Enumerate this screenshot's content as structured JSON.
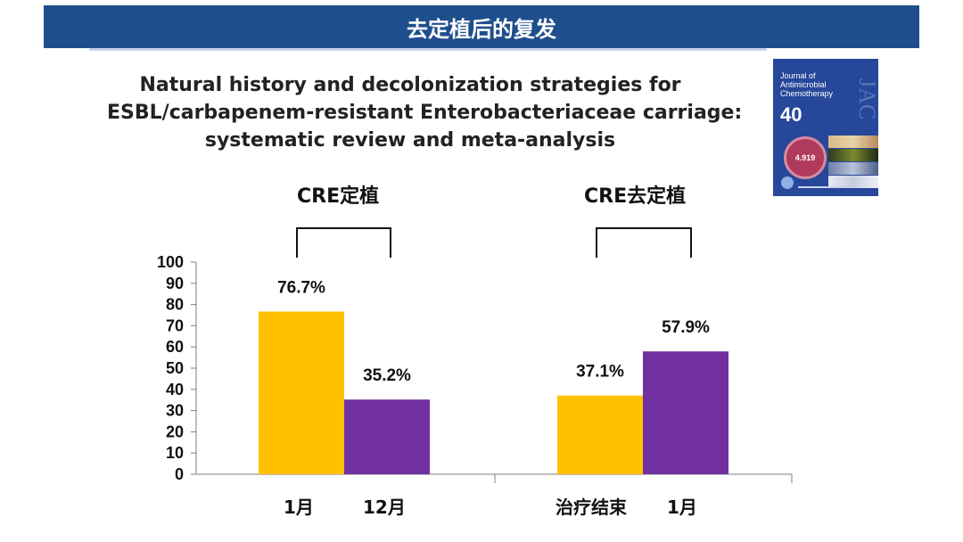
{
  "banner": {
    "title": "去定植后的复发"
  },
  "paper": {
    "title_lines": [
      "Natural history and decolonization strategies for",
      "ESBL/carbapenem-resistant Enterobacteriaceae carriage:",
      "systematic review and meta-analysis"
    ]
  },
  "journal_cover": {
    "title": "Journal of Antimicrobial Chemotherapy",
    "volume": "40",
    "abbrev": "JAC",
    "impact": "4.919"
  },
  "chart_data": {
    "type": "bar",
    "groups": [
      {
        "label": "CRE定植",
        "categories": [
          "1月",
          "12月"
        ],
        "values": [
          76.7,
          35.2
        ],
        "colors": [
          "#FFC000",
          "#7030A0"
        ],
        "value_labels": [
          "76.7%",
          "35.2%"
        ]
      },
      {
        "label": "CRE去定植",
        "categories": [
          "治疗结束",
          "1月"
        ],
        "values": [
          37.1,
          57.9
        ],
        "colors": [
          "#FFC000",
          "#7030A0"
        ],
        "value_labels": [
          "37.1%",
          "57.9%"
        ]
      }
    ],
    "ylim": [
      0,
      100
    ],
    "yticks": [
      "0",
      "10",
      "20",
      "30",
      "40",
      "50",
      "60",
      "70",
      "80",
      "90",
      "100"
    ],
    "grid": false
  }
}
